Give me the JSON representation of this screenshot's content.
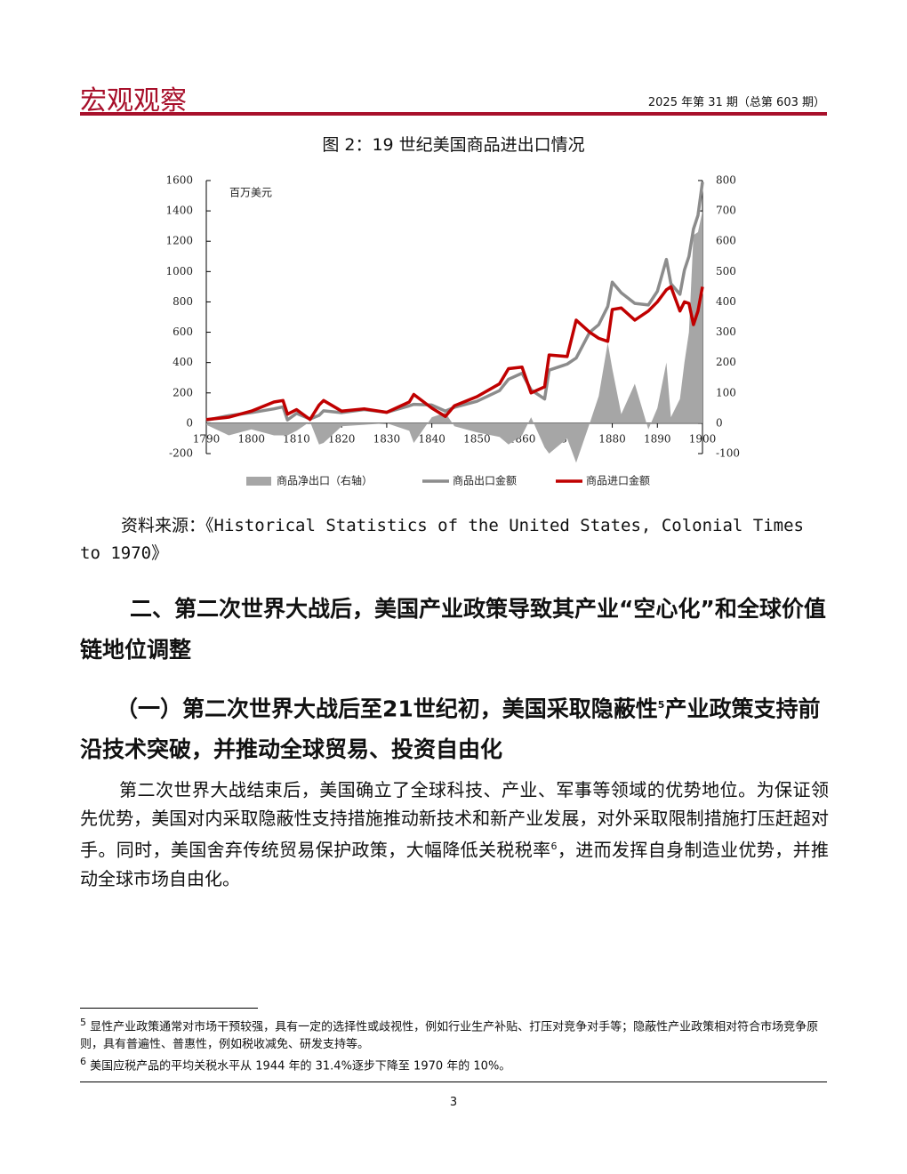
{
  "header": {
    "brand": "宏观观察",
    "issue": "2025 年第 31 期（总第 603 期）"
  },
  "figure_title": "图 2：19 世纪美国商品进出口情况",
  "chart_data": {
    "type": "line",
    "y_label": "百万美元",
    "x": [
      1790,
      1795,
      1800,
      1805,
      1807,
      1808,
      1810,
      1813,
      1815,
      1816,
      1820,
      1825,
      1830,
      1835,
      1836,
      1840,
      1843,
      1845,
      1850,
      1855,
      1857,
      1860,
      1862,
      1865,
      1866,
      1870,
      1872,
      1875,
      1877,
      1879,
      1880,
      1882,
      1885,
      1888,
      1890,
      1892,
      1893,
      1895,
      1896,
      1897,
      1898,
      1899,
      1900
    ],
    "series": [
      {
        "name": "商品净出口（右轴）",
        "type": "area",
        "axis": "y2",
        "color": "#a6a6a6",
        "values": [
          -5,
          -40,
          -20,
          -40,
          -40,
          -40,
          -25,
          5,
          -70,
          -65,
          -10,
          -5,
          0,
          -25,
          -65,
          20,
          35,
          -10,
          -30,
          -45,
          -70,
          -40,
          20,
          -80,
          -100,
          -50,
          -130,
          0,
          90,
          265,
          180,
          30,
          130,
          -20,
          50,
          200,
          20,
          80,
          200,
          300,
          620,
          630,
          700
        ]
      },
      {
        "name": "商品出口金额",
        "type": "line",
        "color": "#8c8c8c",
        "values": [
          20,
          50,
          70,
          95,
          108,
          22,
          65,
          28,
          52,
          82,
          70,
          90,
          72,
          115,
          125,
          120,
          80,
          105,
          145,
          215,
          290,
          330,
          220,
          160,
          350,
          390,
          430,
          600,
          650,
          770,
          930,
          860,
          790,
          780,
          870,
          1080,
          920,
          850,
          1010,
          1100,
          1280,
          1370,
          1590
        ]
      },
      {
        "name": "商品进口金额",
        "type": "line",
        "color": "#c00000",
        "values": [
          24,
          40,
          80,
          140,
          150,
          60,
          90,
          25,
          120,
          150,
          80,
          95,
          72,
          140,
          190,
          100,
          45,
          115,
          175,
          260,
          360,
          370,
          200,
          240,
          450,
          440,
          680,
          600,
          560,
          540,
          750,
          760,
          680,
          740,
          800,
          880,
          900,
          740,
          800,
          790,
          650,
          740,
          900
        ]
      }
    ],
    "xlim": [
      1790,
      1900
    ],
    "xticks": [
      1790,
      1800,
      1810,
      1820,
      1830,
      1840,
      1850,
      1860,
      1870,
      1880,
      1890,
      1900
    ],
    "ylim": [
      -200,
      1600
    ],
    "yticks": [
      -200,
      0,
      200,
      400,
      600,
      800,
      1000,
      1200,
      1400,
      1600
    ],
    "y2lim": [
      -100,
      800
    ],
    "y2ticks": [
      -100,
      0,
      100,
      200,
      300,
      400,
      500,
      600,
      700,
      800
    ]
  },
  "source": "资料来源：《Historical Statistics of the United States, Colonial Times to 1970》",
  "heading2": "二、第二次世界大战后，美国产业政策导致其产业“空心化”和全球价值链地位调整",
  "heading3": {
    "before": "（一）第二次世界大战后至21世纪初，美国采取隐蔽性",
    "note": "5",
    "after": "产业政策支持前沿技术突破，并推动全球贸易、投资自由化"
  },
  "paragraph": {
    "before": "第二次世界大战结束后，美国确立了全球科技、产业、军事等领域的优势地位。为保证领先优势，美国对内采取隐蔽性支持措施推动新技术和新产业发展，对外采取限制措施打压赶超对手。同时，美国舍弃传统贸易保护政策，大幅降低关税税率",
    "note": "6",
    "after": "，进而发挥自身制造业优势，并推动全球市场自由化。"
  },
  "footnotes": [
    {
      "mark": "5",
      "text": "显性产业政策通常对市场干预较强，具有一定的选择性或歧视性，例如行业生产补贴、打压对竞争对手等；隐蔽性产业政策相对符合市场竞争原则，具有普遍性、普惠性，例如税收减免、研发支持等。"
    },
    {
      "mark": "6",
      "text": "美国应税产品的平均关税水平从 1944 年的 31.4%逐步下降至 1970 年的 10%。"
    }
  ],
  "page_number": "3"
}
